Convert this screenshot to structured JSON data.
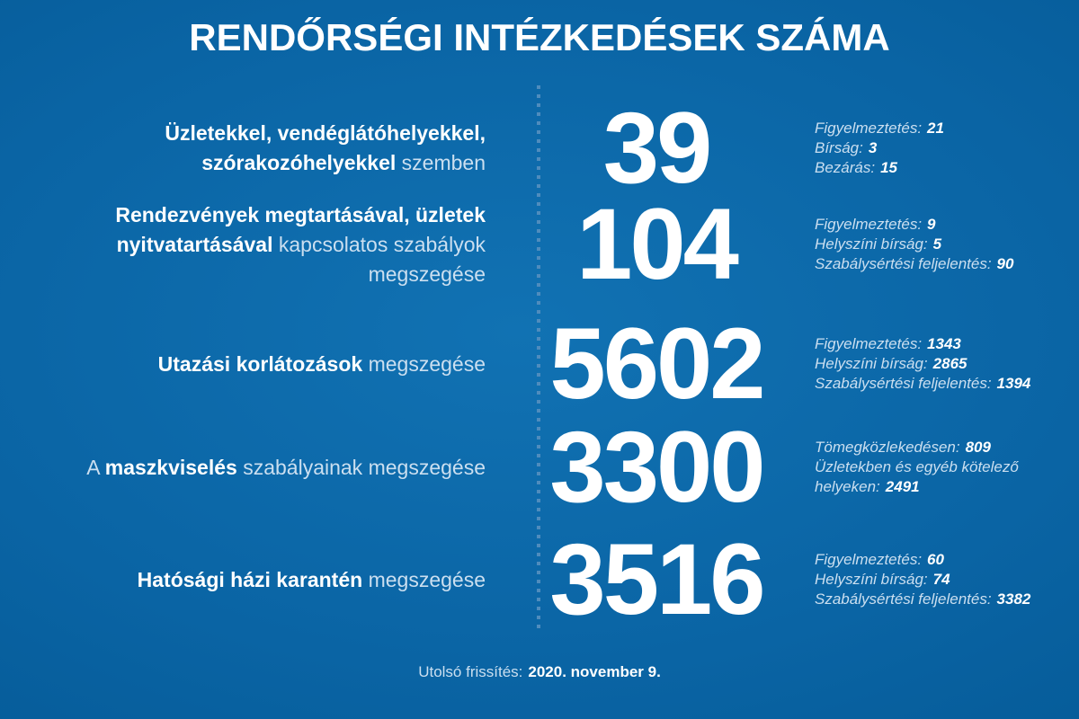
{
  "title": "RENDŐRSÉGI INTÉZKEDÉSEK SZÁMA",
  "rows": [
    {
      "label": [
        {
          "text": "Üzletekkel, vendéglátóhelyekkel, szórakozóhelyekkel",
          "bold": true
        },
        {
          "text": " szemben",
          "bold": false
        }
      ],
      "value": "39",
      "details": [
        {
          "label": "Figyelmeztetés:",
          "value": "21"
        },
        {
          "label": "Bírság:",
          "value": "3"
        },
        {
          "label": "Bezárás:",
          "value": "15"
        }
      ]
    },
    {
      "label": [
        {
          "text": "Rendezvények megtartásával, üzletek nyitvatartásával",
          "bold": true
        },
        {
          "text": " kapcsolatos szabályok megszegése",
          "bold": false
        }
      ],
      "value": "104",
      "details": [
        {
          "label": "Figyelmeztetés:",
          "value": "9"
        },
        {
          "label": "Helyszíni bírság:",
          "value": "5"
        },
        {
          "label": "Szabálysértési feljelentés:",
          "value": "90"
        }
      ]
    },
    {
      "label": [
        {
          "text": "Utazási korlátozások",
          "bold": true
        },
        {
          "text": " megszegése",
          "bold": false
        }
      ],
      "value": "5602",
      "details": [
        {
          "label": "Figyelmeztetés:",
          "value": "1343"
        },
        {
          "label": "Helyszíni bírság:",
          "value": "2865"
        },
        {
          "label": "Szabálysértési feljelentés:",
          "value": "1394"
        }
      ]
    },
    {
      "label": [
        {
          "text": "A ",
          "bold": false
        },
        {
          "text": "maszkviselés",
          "bold": true
        },
        {
          "text": " szabályainak megszegése",
          "bold": false
        }
      ],
      "value": "3300",
      "details": [
        {
          "label": "Tömegközlekedésen:",
          "value": "809"
        },
        {
          "label": "Üzletekben és egyéb kötelező helyeken:",
          "value": "2491"
        }
      ]
    },
    {
      "label": [
        {
          "text": "Hatósági házi karantén",
          "bold": true
        },
        {
          "text": " megszegése",
          "bold": false
        }
      ],
      "value": "3516",
      "details": [
        {
          "label": "Figyelmeztetés:",
          "value": "60"
        },
        {
          "label": "Helyszíni bírság:",
          "value": "74"
        },
        {
          "label": "Szabálysértési feljelentés:",
          "value": "3382"
        }
      ]
    }
  ],
  "footer": {
    "label": "Utolsó frissítés:",
    "value": "2020. november 9."
  },
  "colors": {
    "background_center": "#1172b3",
    "background_edge": "#00528c",
    "text_bright": "#ffffff",
    "text_light": "#cbdff0",
    "divider_dots": "#4f8cbd"
  },
  "chart_data": {
    "type": "table",
    "title": "RENDŐRSÉGI INTÉZKEDÉSEK SZÁMA",
    "categories": [
      "Üzletekkel, vendéglátóhelyekkel, szórakozóhelyekkel szemben",
      "Rendezvények megtartásával, üzletek nyitvatartásával kapcsolatos szabályok megszegése",
      "Utazási korlátozások megszegése",
      "A maszkviselés szabályainak megszegése",
      "Hatósági házi karantén megszegése"
    ],
    "values": [
      39,
      104,
      5602,
      3300,
      3516
    ],
    "breakdowns": [
      {
        "Figyelmeztetés": 21,
        "Bírság": 3,
        "Bezárás": 15
      },
      {
        "Figyelmeztetés": 9,
        "Helyszíni bírság": 5,
        "Szabálysértési feljelentés": 90
      },
      {
        "Figyelmeztetés": 1343,
        "Helyszíni bírság": 2865,
        "Szabálysértési feljelentés": 1394
      },
      {
        "Tömegközlekedésen": 809,
        "Üzletekben és egyéb kötelező helyeken": 2491
      },
      {
        "Figyelmeztetés": 60,
        "Helyszíni bírság": 74,
        "Szabálysértési feljelentés": 3382
      }
    ],
    "footer": "Utolsó frissítés: 2020. november 9."
  }
}
